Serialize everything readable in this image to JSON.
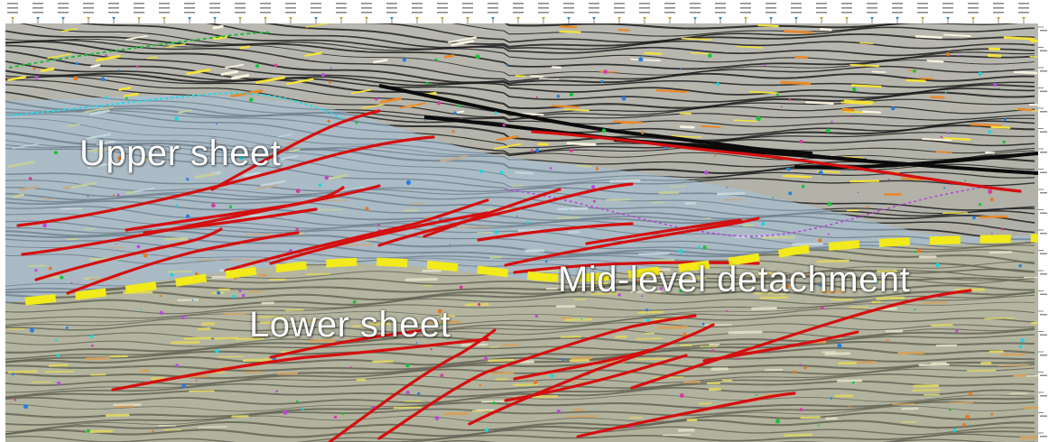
{
  "annotations": {
    "upper_sheet": "Upper sheet",
    "lower_sheet": "Lower sheet",
    "mid_level_detachment": "Mid-level detachment"
  },
  "colors": {
    "upper_sheet_overlay": "#a9c3d9",
    "lower_sheet_overlay": "#bfc1a3",
    "fault_lines": "#d40f0f",
    "detachment_line": "#f2ea1a",
    "seismic_trough": "#1a1a1a",
    "seismic_peak": "#f4e23a"
  },
  "icons": {
    "trace_header": "trace-header-ruler",
    "time_axis": "time-axis-ruler"
  }
}
